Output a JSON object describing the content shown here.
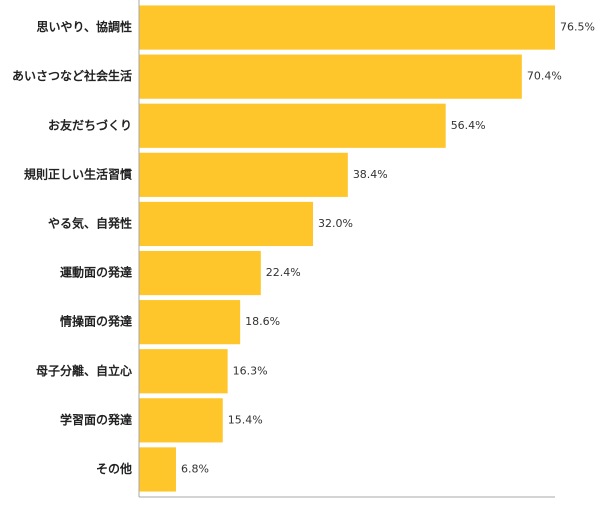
{
  "chart_data": {
    "type": "bar",
    "orientation": "horizontal",
    "categories": [
      "思いやり、協調性",
      "あいさつなど社会生活",
      "お友だちづくり",
      "規則正しい生活習慣",
      "やる気、自発性",
      "運動面の発達",
      "情操面の発達",
      "母子分離、自立心",
      "学習面の発達",
      "その他"
    ],
    "values": [
      76.5,
      70.4,
      56.4,
      38.4,
      32.0,
      22.4,
      18.6,
      16.3,
      15.4,
      6.8
    ],
    "value_labels": [
      "76.5%",
      "70.4%",
      "56.4%",
      "38.4%",
      "32.0%",
      "22.4%",
      "18.6%",
      "16.3%",
      "15.4%",
      "6.8%"
    ],
    "color": "#fec62b",
    "xlim": [
      0,
      76.5
    ]
  }
}
